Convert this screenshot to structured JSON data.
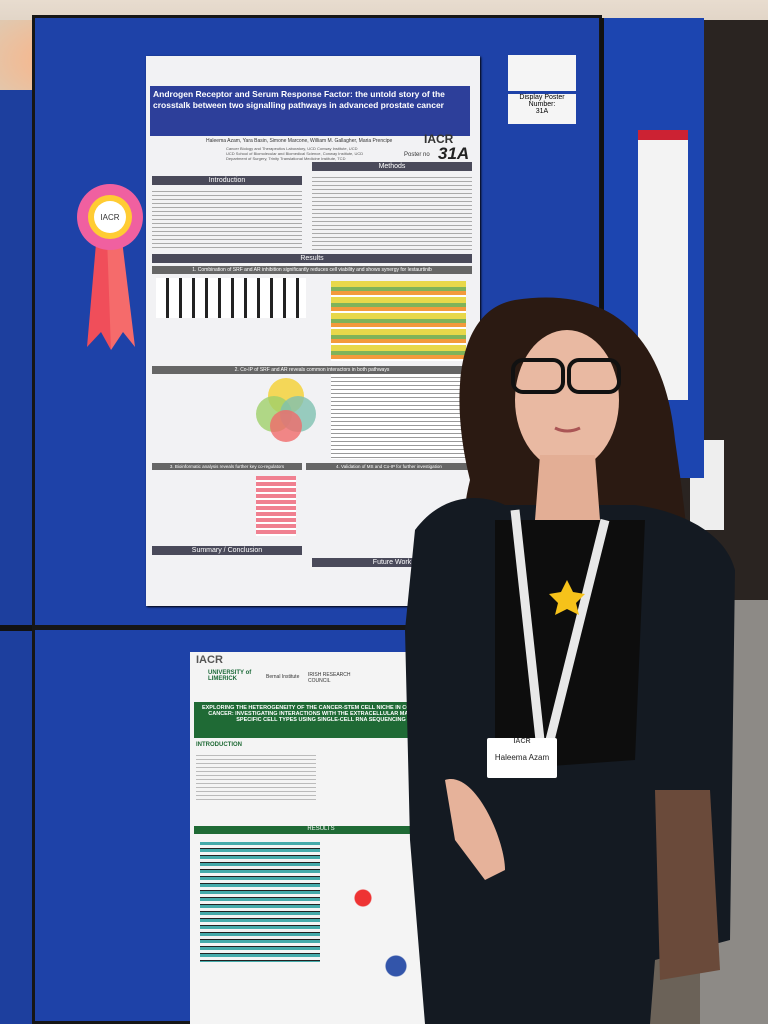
{
  "display_card": {
    "label": "Display Poster Number:",
    "number": "31A"
  },
  "rosette": {
    "logo": "IACR"
  },
  "poster_top": {
    "title": "Androgen Receptor and Serum Response Factor: the untold story of the crosstalk between two signalling pathways in advanced prostate cancer",
    "authors": "Haleema Azam, Yara Basin, Simone Marcone, William M. Gallagher, Maria Prencipe",
    "affiliations": [
      "Cancer Biology and Therapeutics Laboratory, UCD Conway Institute, UCD",
      "UCD School of Biomolecular and Biomedical Science, Conway Institute, UCD",
      "Department of Surgery, Trinity Translational Medicine Institute, TCD"
    ],
    "logo": "IACR",
    "poster_no_label": "Poster no",
    "poster_no": "31A",
    "sections": [
      "Introduction",
      "Methods",
      "Results",
      "Summary / Conclusion",
      "Future Work"
    ],
    "result_headings": [
      "1. Combination of SRF and AR inhibition significantly reduces cell viability and shows synergy for lestaurtinib",
      "2. Co-IP of SRF and AR reveals common interactors in both pathways",
      "3. Bioinformatic analysis reveals further key co-regulators",
      "4. Validation of MS and Co-IP for further investigation"
    ]
  },
  "poster_bottom": {
    "logo": "IACR",
    "institutions": [
      "UNIVERSITY of LIMERICK",
      "Bernal Institute",
      "IRISH RESEARCH COUNCIL"
    ],
    "title": "EXPLORING THE HETEROGENEITY OF THE CANCER-STEM CELL NICHE IN COLORECTAL CANCER: INVESTIGATING INTERACTIONS WITH THE EXTRACELLULAR MATRIX AND SPECIFIC CELL TYPES USING SINGLE-CELL RNA SEQUENCING",
    "sections": [
      "INTRODUCTION",
      "RESULTS"
    ]
  },
  "badge": {
    "logo": "IACR",
    "name": "Haleema Azam"
  }
}
